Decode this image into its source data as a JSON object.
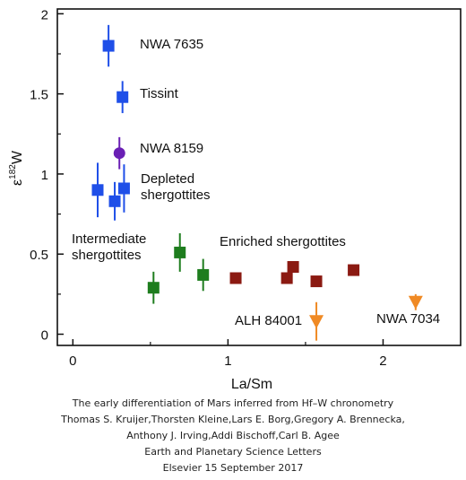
{
  "chart_data": {
    "type": "scatter",
    "xlabel": "La/Sm",
    "ylabel_main": "ε",
    "ylabel_sup": "182",
    "ylabel_tail": "W",
    "xlim": [
      -0.1,
      2.5
    ],
    "ylim": [
      -0.07,
      2.03
    ],
    "xticks": [
      "0",
      "1",
      "2"
    ],
    "xtick_values": [
      0,
      1,
      2
    ],
    "yticks": [
      "0",
      "0.5",
      "1",
      "1.5",
      "2"
    ],
    "ytick_values": [
      0,
      0.5,
      1,
      1.5,
      2
    ],
    "grid": false,
    "legend": "none",
    "series": [
      {
        "marker": "square",
        "color": "#1f4fe8",
        "points": [
          {
            "x": 0.23,
            "y": 1.8,
            "err": 0.13
          },
          {
            "x": 0.32,
            "y": 1.48,
            "err": 0.1
          },
          {
            "x": 0.16,
            "y": 0.9,
            "err": 0.17
          },
          {
            "x": 0.27,
            "y": 0.83,
            "err": 0.12
          },
          {
            "x": 0.33,
            "y": 0.91,
            "err": 0.15
          }
        ]
      },
      {
        "marker": "circle",
        "color": "#6a1fb4",
        "points": [
          {
            "x": 0.3,
            "y": 1.13,
            "err": 0.1
          }
        ]
      },
      {
        "marker": "square",
        "color": "#1e7d1e",
        "points": [
          {
            "x": 0.52,
            "y": 0.29,
            "err": 0.1
          },
          {
            "x": 0.69,
            "y": 0.51,
            "err": 0.12
          },
          {
            "x": 0.84,
            "y": 0.37,
            "err": 0.1
          }
        ]
      },
      {
        "marker": "square",
        "color": "#8b1a12",
        "points": [
          {
            "x": 1.05,
            "y": 0.35,
            "err": 0
          },
          {
            "x": 1.38,
            "y": 0.35,
            "err": 0
          },
          {
            "x": 1.42,
            "y": 0.42,
            "err": 0
          },
          {
            "x": 1.57,
            "y": 0.33,
            "err": 0
          },
          {
            "x": 1.81,
            "y": 0.4,
            "err": 0
          }
        ]
      },
      {
        "marker": "triangle-down",
        "color": "#f08a24",
        "points": [
          {
            "x": 1.57,
            "y": 0.08,
            "err": 0.12
          },
          {
            "x": 2.21,
            "y": 0.2,
            "err": 0.05
          }
        ]
      }
    ],
    "annotations": [
      {
        "text": "NWA 7635"
      },
      {
        "text": "Tissint"
      },
      {
        "text": "NWA 8159"
      },
      {
        "text": "Depleted"
      },
      {
        "text": "shergottites"
      },
      {
        "text": "Intermediate"
      },
      {
        "text": "shergottites"
      },
      {
        "text": "Enriched shergottites"
      },
      {
        "text": "ALH 84001"
      },
      {
        "text": "NWA 7034"
      }
    ]
  },
  "caption": {
    "line1": "The early differentiation of Mars inferred from Hf–W chronometry",
    "line2": "Thomas S. Kruijer,Thorsten Kleine,Lars E. Borg,Gregory A. Brennecka,",
    "line3": "Anthony J. Irving,Addi Bischoff,Carl B. Agee",
    "line4": "Earth and Planetary Science Letters",
    "line5": "Elsevier 15 September 2017"
  }
}
